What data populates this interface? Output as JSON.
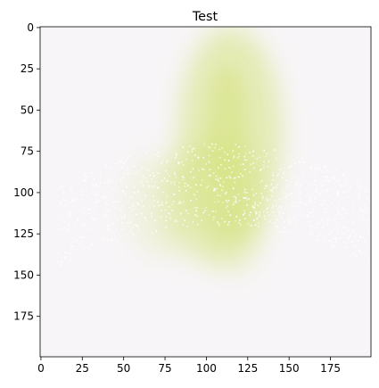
{
  "chart_data": {
    "type": "heatmap",
    "title": "Test",
    "xlabel": "",
    "ylabel": "",
    "xlim": [
      -0.5,
      199.5
    ],
    "ylim": [
      199.5,
      -0.5
    ],
    "x_ticks": [
      0,
      25,
      50,
      75,
      100,
      125,
      150,
      175
    ],
    "y_ticks": [
      0,
      25,
      50,
      75,
      100,
      125,
      150,
      175
    ],
    "grid": false,
    "colors": {
      "background": "#f8f5f8",
      "highlight": "#d4e27a",
      "speckle": "#ffffff",
      "axis": "#000000"
    }
  }
}
